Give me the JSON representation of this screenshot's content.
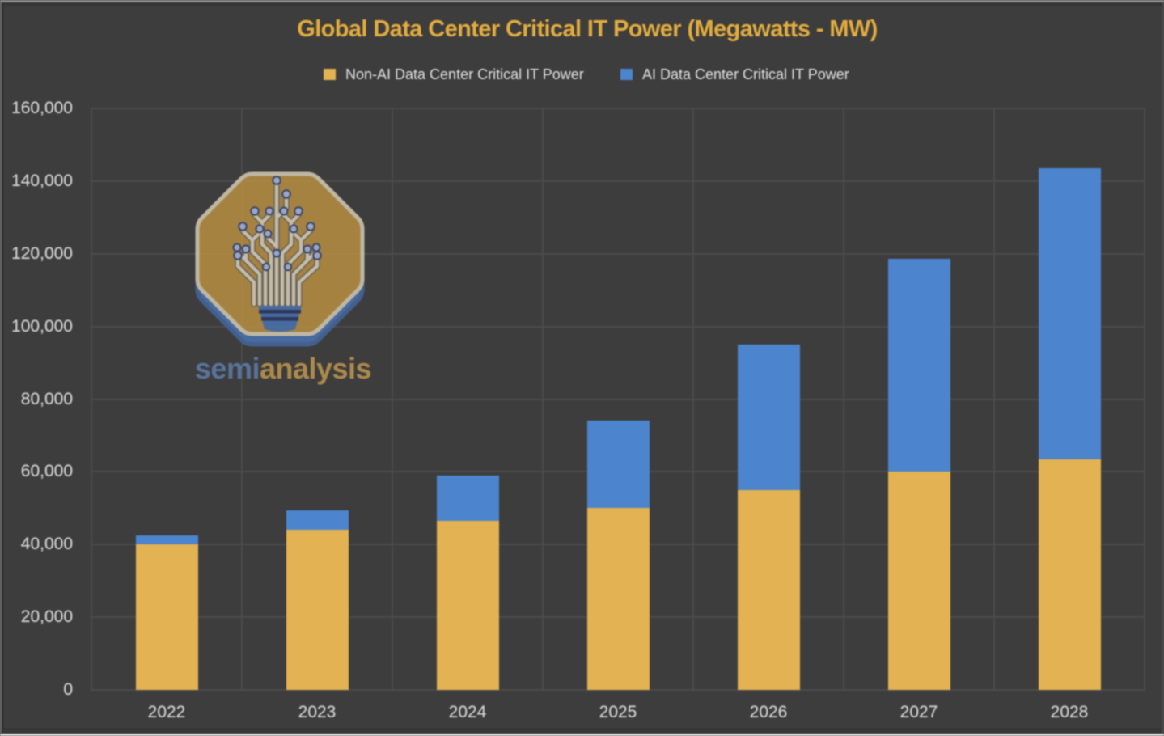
{
  "chart_data": {
    "type": "bar",
    "stacked": true,
    "title": "Global Data Center Critical IT Power (Megawatts - MW)",
    "categories": [
      "2022",
      "2023",
      "2024",
      "2025",
      "2026",
      "2027",
      "2028"
    ],
    "series": [
      {
        "name": "Non-AI Data Center Critical IT Power",
        "color": "#E3B252",
        "values": [
          40000,
          44000,
          46500,
          50000,
          55000,
          60000,
          63500
        ]
      },
      {
        "name": "AI Data Center Critical IT Power",
        "color": "#4C85CD",
        "values": [
          2500,
          5500,
          12500,
          24000,
          40000,
          58500,
          80000
        ]
      }
    ],
    "xlabel": "",
    "ylabel": "",
    "ylim": [
      0,
      160000
    ],
    "ytick_step": 20000,
    "ytick_labels": [
      "0",
      "20,000",
      "40,000",
      "60,000",
      "80,000",
      "100,000",
      "120,000",
      "140,000",
      "160,000"
    ],
    "grid": true,
    "legend_position": "top"
  },
  "watermark": {
    "brand_prefix": "semi",
    "brand_suffix": "analysis"
  },
  "colors": {
    "background": "#3D3D3D",
    "gridline": "#4B4B4B",
    "axis_text": "#D3D3D3",
    "title_text": "#E2AC3E",
    "legend_text": "#D8D8D8",
    "non_ai_bar": "#E3B252",
    "ai_bar": "#4C85CD",
    "brand_semi": "#5E7DAD",
    "brand_analysis": "#C1974E"
  }
}
